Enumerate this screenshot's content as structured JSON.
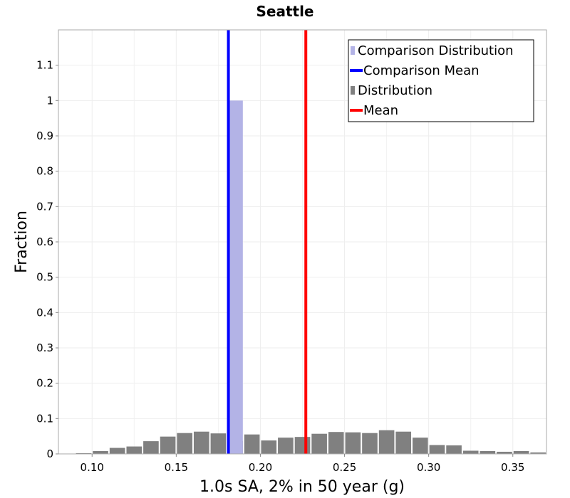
{
  "chart_data": {
    "type": "bar",
    "title": "Seattle",
    "xlabel": "1.0s SA, 2% in 50 year (g)",
    "ylabel": "Fraction",
    "xlim": [
      0.08,
      0.37
    ],
    "ylim": [
      0,
      1.2
    ],
    "bin_width": 0.01,
    "x_ticks": [
      0.1,
      0.15,
      0.2,
      0.25,
      0.3,
      0.35
    ],
    "x_tick_labels": [
      "0.10",
      "0.15",
      "0.20",
      "0.25",
      "0.30",
      "0.35"
    ],
    "y_ticks": [
      0,
      0.1,
      0.2,
      0.3,
      0.4,
      0.5,
      0.6,
      0.7,
      0.8,
      0.9,
      1,
      1.1
    ],
    "y_tick_labels": [
      "0",
      "0.1",
      "0.2",
      "0.3",
      "0.4",
      "0.5",
      "0.6",
      "0.7",
      "0.8",
      "0.9",
      "1",
      "1.1"
    ],
    "grid": true,
    "legend_position": "top-right",
    "series": [
      {
        "name": "Distribution",
        "kind": "bars",
        "color": "#808080",
        "bin_centers": [
          0.095,
          0.105,
          0.115,
          0.125,
          0.135,
          0.145,
          0.155,
          0.165,
          0.175,
          0.185,
          0.195,
          0.205,
          0.215,
          0.225,
          0.235,
          0.245,
          0.255,
          0.265,
          0.275,
          0.285,
          0.295,
          0.305,
          0.315,
          0.325,
          0.335,
          0.345,
          0.355,
          0.365
        ],
        "values": [
          0.002,
          0.008,
          0.017,
          0.021,
          0.036,
          0.049,
          0.059,
          0.063,
          0.058,
          0.037,
          0.055,
          0.038,
          0.046,
          0.048,
          0.057,
          0.062,
          0.061,
          0.059,
          0.067,
          0.063,
          0.046,
          0.025,
          0.024,
          0.009,
          0.008,
          0.006,
          0.008,
          0.004
        ]
      },
      {
        "name": "Comparison Distribution",
        "kind": "bars",
        "color": "#b3b3e6",
        "bin_centers": [
          0.185
        ],
        "values": [
          1.0
        ]
      },
      {
        "name": "Comparison Mean",
        "kind": "vline",
        "color": "#0000ff",
        "x": 0.181
      },
      {
        "name": "Mean",
        "kind": "vline",
        "color": "#ff0000",
        "x": 0.227
      }
    ],
    "legend": [
      {
        "label": "Comparison Distribution",
        "symbol": "square",
        "color": "#b3b3e6"
      },
      {
        "label": "Comparison Mean",
        "symbol": "line",
        "color": "#0000ff"
      },
      {
        "label": "Distribution",
        "symbol": "square",
        "color": "#808080"
      },
      {
        "label": "Mean",
        "symbol": "line",
        "color": "#ff0000"
      }
    ]
  }
}
